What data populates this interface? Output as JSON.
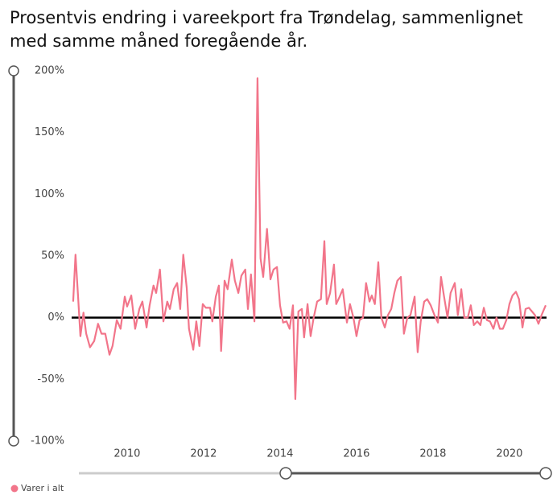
{
  "chart_data": {
    "type": "line",
    "title": "Prosentvis endring i vareekport fra Trøndelag, sammenlignet med samme måned foregående år.",
    "xlim": [
      2008.55,
      2020.97
    ],
    "xticks": [
      2010,
      2012,
      2014,
      2016,
      2018,
      2020
    ],
    "ylim": [
      -100,
      200
    ],
    "yticks": [
      {
        "value": -100,
        "label": "-100%"
      },
      {
        "value": -50,
        "label": "-50%"
      },
      {
        "value": 0,
        "label": "0%"
      },
      {
        "value": 50,
        "label": "50%"
      },
      {
        "value": 100,
        "label": "100%"
      },
      {
        "value": 150,
        "label": "150%"
      },
      {
        "value": 200,
        "label": "200%"
      }
    ],
    "grid": false,
    "legend": "bottom-left",
    "x": [
      2008.59,
      2008.65,
      2008.72,
      2008.78,
      2008.86,
      2008.93,
      2009.03,
      2009.14,
      2009.24,
      2009.33,
      2009.43,
      2009.54,
      2009.62,
      2009.73,
      2009.83,
      2009.94,
      2010.0,
      2010.11,
      2010.21,
      2010.32,
      2010.4,
      2010.51,
      2010.59,
      2010.69,
      2010.76,
      2010.86,
      2010.95,
      2011.05,
      2011.12,
      2011.22,
      2011.31,
      2011.39,
      2011.47,
      2011.56,
      2011.62,
      2011.73,
      2011.81,
      2011.89,
      2011.98,
      2012.06,
      2012.17,
      2012.23,
      2012.32,
      2012.4,
      2012.46,
      2012.55,
      2012.63,
      2012.74,
      2012.82,
      2012.91,
      2012.99,
      2013.09,
      2013.16,
      2013.24,
      2013.33,
      2013.41,
      2013.49,
      2013.56,
      2013.66,
      2013.75,
      2013.83,
      2013.92,
      2014.0,
      2014.08,
      2014.17,
      2014.25,
      2014.34,
      2014.4,
      2014.48,
      2014.57,
      2014.63,
      2014.72,
      2014.8,
      2014.88,
      2014.97,
      2015.07,
      2015.16,
      2015.22,
      2015.31,
      2015.41,
      2015.47,
      2015.56,
      2015.64,
      2015.75,
      2015.83,
      2015.92,
      2016.0,
      2016.08,
      2016.17,
      2016.25,
      2016.34,
      2016.4,
      2016.48,
      2016.57,
      2016.65,
      2016.74,
      2016.82,
      2016.91,
      2016.99,
      2017.07,
      2017.16,
      2017.24,
      2017.33,
      2017.41,
      2017.52,
      2017.6,
      2017.68,
      2017.77,
      2017.85,
      2017.94,
      2018.04,
      2018.13,
      2018.21,
      2018.29,
      2018.38,
      2018.46,
      2018.57,
      2018.65,
      2018.74,
      2018.82,
      2018.91,
      2018.99,
      2019.07,
      2019.16,
      2019.24,
      2019.33,
      2019.41,
      2019.49,
      2019.58,
      2019.66,
      2019.75,
      2019.83,
      2019.92,
      2020.0,
      2020.08,
      2020.17,
      2020.25,
      2020.34,
      2020.42,
      2020.51,
      2020.59,
      2020.67,
      2020.76,
      2020.84,
      2020.95
    ],
    "series": [
      {
        "name": "Varer i alt",
        "color": "#f2758a",
        "values": [
          13,
          51,
          16,
          -15,
          4,
          -13,
          -24,
          -19,
          -5,
          -13,
          -13,
          -30,
          -23,
          -2,
          -9,
          17,
          9,
          18,
          -9,
          7,
          13,
          -8,
          10,
          26,
          20,
          39,
          -3,
          13,
          7,
          23,
          28,
          7,
          51,
          24,
          -9,
          -26,
          -3,
          -23,
          11,
          8,
          8,
          -3,
          17,
          26,
          -27,
          30,
          23,
          47,
          30,
          20,
          34,
          39,
          7,
          35,
          -3,
          194,
          48,
          33,
          72,
          31,
          39,
          41,
          10,
          -4,
          -3,
          -9,
          10,
          -66,
          5,
          7,
          -16,
          11,
          -15,
          0,
          13,
          15,
          62,
          11,
          20,
          43,
          11,
          17,
          23,
          -4,
          11,
          0,
          -15,
          -2,
          0,
          28,
          13,
          18,
          11,
          45,
          0,
          -8,
          2,
          7,
          20,
          30,
          33,
          -13,
          0,
          2,
          17,
          -28,
          -3,
          13,
          15,
          10,
          2,
          -4,
          33,
          17,
          0,
          20,
          28,
          2,
          23,
          0,
          0,
          10,
          -6,
          -3,
          -6,
          8,
          -2,
          -3,
          -9,
          0,
          -9,
          -9,
          -2,
          11,
          18,
          21,
          15,
          -8,
          7,
          8,
          5,
          2,
          -5,
          2,
          10
        ]
      }
    ]
  }
}
